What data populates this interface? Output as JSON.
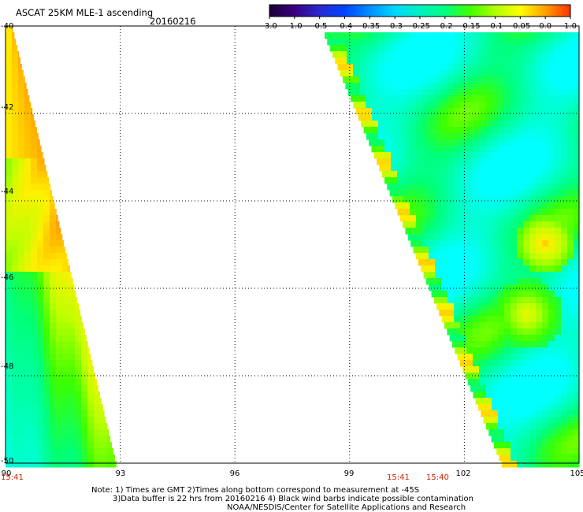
{
  "header": {
    "title": "ASCAT 25KM MLE-1 ascending",
    "date": "20160216"
  },
  "colorbar": {
    "labels": [
      "-3.0",
      "-1.0",
      "-0.5",
      "-0.4",
      "-0.35",
      "-0.3",
      "-0.25",
      "-0.2",
      "-0.15",
      "-0.1",
      "-0.05",
      "0.0",
      "1.0"
    ],
    "colors": [
      "#1a0033",
      "#3a0080",
      "#2a2ad0",
      "#0044ff",
      "#0090ff",
      "#00d8ff",
      "#00f0c0",
      "#00ff80",
      "#40ff00",
      "#b0ff00",
      "#ffff00",
      "#ffa000",
      "#ff3000"
    ]
  },
  "map": {
    "lat_labels": [
      "-40",
      "-42",
      "-44",
      "-46",
      "-48",
      "-50"
    ],
    "lon_labels": [
      "90",
      "93",
      "96",
      "99",
      "102",
      "105"
    ],
    "time_labels": [
      "15:41",
      "15:41",
      "15:40"
    ]
  },
  "footer": {
    "line1": "Note: 1) Times are GMT 2)Times along bottom correspond to measurement at -45S",
    "line2": "3)Data buffer is 22 hrs from 20160216 4) Black wind barbs indicate possible contamination",
    "line3": "NOAA/NESDIS/Center for Satellite Applications and Research"
  }
}
